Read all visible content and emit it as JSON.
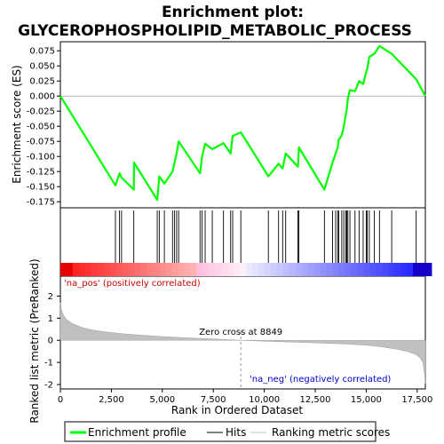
{
  "title_line1": "Enrichment plot:",
  "title_line2": "GLYCEROPHOSPHOLIPID_METABOLIC_PROCESS",
  "ylabel_top": "Enrichment score (ES)",
  "ylabel_bottom": "Ranked list metric (PreRanked)",
  "xlabel": "Rank in Ordered Dataset",
  "label_pos": "'na_pos' (positively correlated)",
  "label_neg": "'na_neg' (negatively correlated)",
  "zero_cross_label": "Zero cross at 8849",
  "legend": {
    "profile": "Enrichment profile",
    "hits": "Hits",
    "metric": "Ranking metric scores"
  },
  "colors": {
    "profile": "#00ff00",
    "hits": "#000000",
    "metric_fill": "#c0c0c0",
    "pos_label": "#cc0000",
    "neg_label": "#0000cc"
  },
  "chart_data": {
    "type": "line",
    "n_genes": 17900,
    "zero_cross": 8849,
    "es_ylim": [
      -0.185,
      0.09
    ],
    "es_yticks": [
      0.075,
      0.05,
      0.025,
      0.0,
      -0.025,
      -0.05,
      -0.075,
      -0.1,
      -0.125,
      -0.15,
      -0.175
    ],
    "es_ytick_labels": [
      "0.075",
      "0.050",
      "0.025",
      "0.000",
      "-0.025",
      "-0.050",
      "-0.075",
      "-0.100",
      "-0.125",
      "-0.150",
      "-0.175"
    ],
    "metric_ylim": [
      -2.2,
      2.9
    ],
    "metric_yticks": [
      2,
      1,
      0,
      -1,
      -2
    ],
    "metric_ytick_labels": [
      "2",
      "1",
      "0",
      "-1",
      "-2"
    ],
    "xticks": [
      0,
      2500,
      5000,
      7500,
      10000,
      12500,
      15000,
      17500
    ],
    "xtick_labels": [
      "0",
      "2,500",
      "5,000",
      "7,500",
      "10,000",
      "12,500",
      "15,000",
      "17,500"
    ],
    "hits": [
      2700,
      2900,
      3000,
      3600,
      4750,
      4850,
      5100,
      5500,
      5600,
      5700,
      5800,
      6850,
      6950,
      7100,
      7450,
      8000,
      8350,
      8450,
      8850,
      10200,
      10700,
      10900,
      11050,
      11650,
      11700,
      12950,
      13350,
      13500,
      13600,
      13650,
      13800,
      13900,
      14000,
      14050,
      14100,
      14200,
      14450,
      14650,
      14850,
      15000,
      15050,
      15150,
      15400,
      15650,
      16250,
      17450
    ],
    "es_x": [
      0,
      2700,
      2900,
      3000,
      3600,
      3610,
      4750,
      4850,
      5100,
      5500,
      5600,
      5700,
      5800,
      6850,
      6950,
      7100,
      7450,
      8000,
      8350,
      8450,
      8850,
      10200,
      10700,
      10900,
      11050,
      11650,
      11700,
      12950,
      13350,
      13500,
      13600,
      13650,
      13800,
      13900,
      14000,
      14050,
      14100,
      14200,
      14450,
      14650,
      14850,
      15000,
      15050,
      15150,
      15400,
      15650,
      16250,
      17450,
      17900
    ],
    "es_y": [
      0.0,
      -0.148,
      -0.128,
      -0.135,
      -0.155,
      -0.11,
      -0.172,
      -0.133,
      -0.145,
      -0.125,
      -0.11,
      -0.095,
      -0.075,
      -0.128,
      -0.1,
      -0.079,
      -0.088,
      -0.078,
      -0.095,
      -0.066,
      -0.06,
      -0.133,
      -0.112,
      -0.12,
      -0.095,
      -0.117,
      -0.085,
      -0.155,
      -0.11,
      -0.095,
      -0.085,
      -0.072,
      -0.065,
      -0.05,
      -0.03,
      -0.02,
      -0.005,
      0.01,
      0.008,
      0.025,
      0.02,
      0.04,
      0.045,
      0.065,
      0.07,
      0.083,
      0.07,
      0.028,
      0.0
    ],
    "metric_x": [
      0,
      50,
      150,
      300,
      600,
      1000,
      1500,
      2200,
      3000,
      4000,
      5000,
      6000,
      7000,
      8000,
      8849,
      10000,
      11000,
      12000,
      13000,
      14000,
      15000,
      15800,
      16500,
      17000,
      17400,
      17650,
      17780,
      17850,
      17900
    ],
    "metric_y": [
      1.7,
      1.4,
      1.15,
      0.95,
      0.75,
      0.6,
      0.48,
      0.38,
      0.3,
      0.23,
      0.17,
      0.12,
      0.08,
      0.04,
      0.0,
      -0.04,
      -0.07,
      -0.1,
      -0.13,
      -0.17,
      -0.22,
      -0.3,
      -0.4,
      -0.5,
      -0.62,
      -0.8,
      -1.0,
      -1.5,
      -1.95
    ]
  }
}
